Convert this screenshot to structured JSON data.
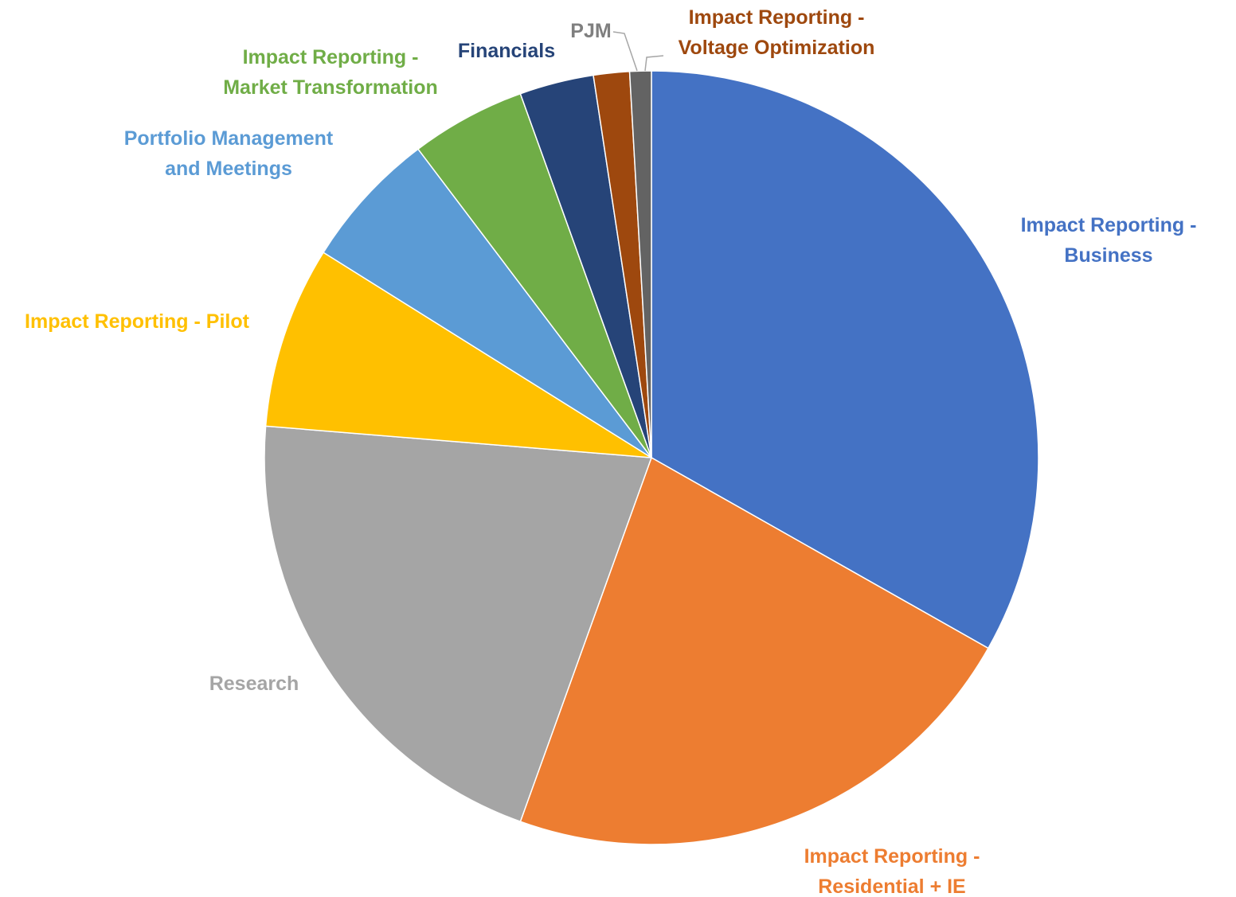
{
  "chart_data": {
    "type": "pie",
    "categories": [
      [
        "Impact Reporting -",
        "Business"
      ],
      [
        "Impact Reporting -",
        "Residential + IE"
      ],
      [
        "Research"
      ],
      [
        "Impact Reporting - Pilot"
      ],
      [
        "Portfolio Management",
        "and Meetings"
      ],
      [
        "Impact Reporting -",
        "Market Transformation"
      ],
      [
        "Financials"
      ],
      [
        "Impact Reporting -",
        "Voltage Optimization"
      ],
      [
        "PJM"
      ]
    ],
    "values": [
      33.2,
      22.3,
      20.8,
      7.6,
      5.8,
      4.8,
      3.1,
      1.5,
      0.9
    ],
    "colors": [
      "#4472c4",
      "#ed7d31",
      "#a5a5a5",
      "#ffc000",
      "#5b9bd5",
      "#70ad47",
      "#264478",
      "#9e480e",
      "#636363"
    ]
  }
}
